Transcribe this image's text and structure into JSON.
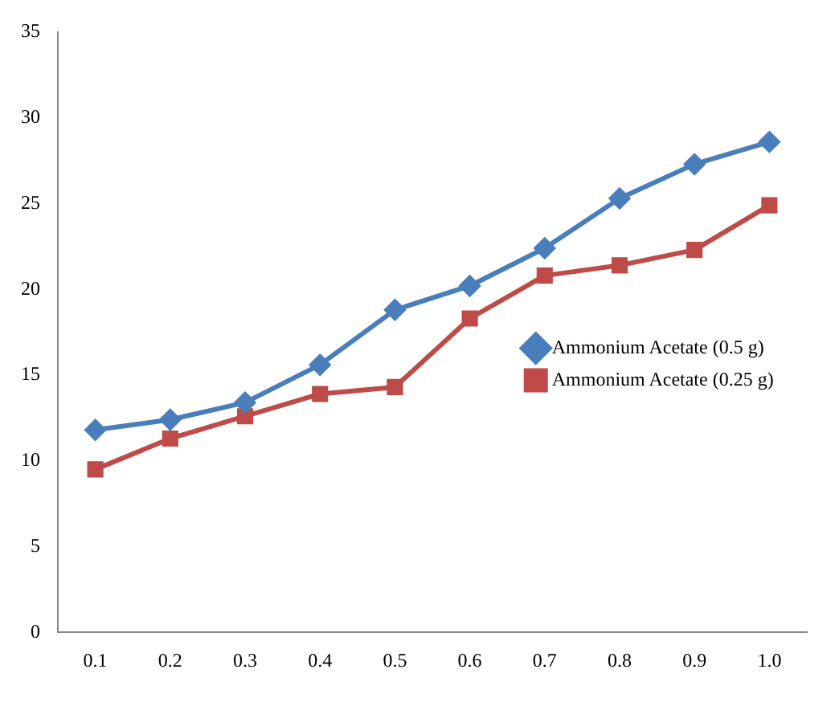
{
  "chart_data": {
    "type": "line",
    "categories": [
      "0.1",
      "0.2",
      "0.3",
      "0.4",
      "0.5",
      "0.6",
      "0.7",
      "0.8",
      "0.9",
      "1.0"
    ],
    "series": [
      {
        "name": "Ammonium Acetate (0.5 g)",
        "color": "#4a7ebb",
        "marker": "diamond",
        "values": [
          11.8,
          12.4,
          13.4,
          15.6,
          18.8,
          20.2,
          22.4,
          25.3,
          27.3,
          28.6
        ]
      },
      {
        "name": "Ammonium Acetate (0.25 g)",
        "color": "#be4b48",
        "marker": "square",
        "values": [
          9.5,
          11.3,
          12.6,
          13.9,
          14.3,
          18.3,
          20.8,
          21.4,
          22.3,
          24.9
        ]
      }
    ],
    "ylim": [
      0,
      35
    ],
    "yticks": [
      0,
      5,
      10,
      15,
      20,
      25,
      30,
      35
    ],
    "grid": false,
    "legend": "right",
    "line_style": "solid"
  }
}
